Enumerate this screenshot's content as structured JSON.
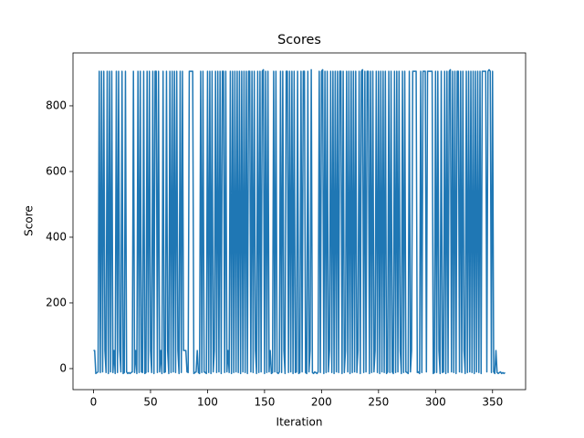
{
  "chart_data": {
    "type": "line",
    "title": "Scores",
    "xlabel": "Iteration",
    "ylabel": "Score",
    "xlim": [
      -18,
      379
    ],
    "ylim": [
      -64,
      961
    ],
    "xticks": [
      0,
      50,
      100,
      150,
      200,
      250,
      300,
      350
    ],
    "yticks": [
      0,
      200,
      400,
      600,
      800
    ],
    "x": [
      0,
      1,
      2,
      3,
      4,
      5,
      6,
      7,
      8,
      9,
      10,
      11,
      12,
      13,
      14,
      15,
      16,
      17,
      18,
      19,
      20,
      21,
      22,
      23,
      24,
      25,
      26,
      27,
      28,
      29,
      30,
      31,
      32,
      33,
      34,
      35,
      36,
      37,
      38,
      39,
      40,
      41,
      42,
      43,
      44,
      45,
      46,
      47,
      48,
      49,
      50,
      51,
      52,
      53,
      54,
      55,
      56,
      57,
      58,
      59,
      60,
      61,
      62,
      63,
      64,
      65,
      66,
      67,
      68,
      69,
      70,
      71,
      72,
      73,
      74,
      75,
      76,
      77,
      78,
      79,
      80,
      81,
      82,
      83,
      84,
      85,
      86,
      87,
      88,
      89,
      90,
      91,
      92,
      93,
      94,
      95,
      96,
      97,
      98,
      99,
      100,
      101,
      102,
      103,
      104,
      105,
      106,
      107,
      108,
      109,
      110,
      111,
      112,
      113,
      114,
      115,
      116,
      117,
      118,
      119,
      120,
      121,
      122,
      123,
      124,
      125,
      126,
      127,
      128,
      129,
      130,
      131,
      132,
      133,
      134,
      135,
      136,
      137,
      138,
      139,
      140,
      141,
      142,
      143,
      144,
      145,
      146,
      147,
      148,
      149,
      150,
      151,
      152,
      153,
      154,
      155,
      156,
      157,
      158,
      159,
      160,
      161,
      162,
      163,
      164,
      165,
      166,
      167,
      168,
      169,
      170,
      171,
      172,
      173,
      174,
      175,
      176,
      177,
      178,
      179,
      180,
      181,
      182,
      183,
      184,
      185,
      186,
      187,
      188,
      189,
      190,
      191,
      192,
      193,
      194,
      195,
      196,
      197,
      198,
      199,
      200,
      201,
      202,
      203,
      204,
      205,
      206,
      207,
      208,
      209,
      210,
      211,
      212,
      213,
      214,
      215,
      216,
      217,
      218,
      219,
      220,
      221,
      222,
      223,
      224,
      225,
      226,
      227,
      228,
      229,
      230,
      231,
      232,
      233,
      234,
      235,
      236,
      237,
      238,
      239,
      240,
      241,
      242,
      243,
      244,
      245,
      246,
      247,
      248,
      249,
      250,
      251,
      252,
      253,
      254,
      255,
      256,
      257,
      258,
      259,
      260,
      261,
      262,
      263,
      264,
      265,
      266,
      267,
      268,
      269,
      270,
      271,
      272,
      273,
      274,
      275,
      276,
      277,
      278,
      279,
      280,
      281,
      282,
      283,
      284,
      285,
      286,
      287,
      288,
      289,
      290,
      291,
      292,
      293,
      294,
      295,
      296,
      297,
      298,
      299,
      300,
      301,
      302,
      303,
      304,
      305,
      306,
      307,
      308,
      309,
      310,
      311,
      312,
      313,
      314,
      315,
      316,
      317,
      318,
      319,
      320,
      321,
      322,
      323,
      324,
      325,
      326,
      327,
      328,
      329,
      330,
      331,
      332,
      333,
      334,
      335,
      336,
      337,
      338,
      339,
      340,
      341,
      342,
      343,
      344,
      345,
      346,
      347,
      348,
      349,
      350,
      351,
      352,
      353,
      354,
      355,
      356,
      357,
      358,
      359,
      360,
      361
    ],
    "series": [
      {
        "color": "#1f77b4",
        "values": [
          55,
          55,
          -15,
          -12,
          -10,
          905,
          -12,
          905,
          -10,
          905,
          55,
          -12,
          905,
          -15,
          905,
          -10,
          905,
          -12,
          55,
          -15,
          905,
          -12,
          905,
          55,
          -10,
          905,
          -15,
          -12,
          905,
          -10,
          -15,
          -12,
          -15,
          -12,
          -10,
          905,
          -12,
          55,
          -15,
          905,
          -12,
          905,
          -10,
          -12,
          905,
          -15,
          -12,
          905,
          -10,
          905,
          55,
          -12,
          905,
          -15,
          905,
          905,
          -12,
          905,
          -10,
          55,
          -15,
          905,
          -12,
          -10,
          905,
          55,
          -15,
          905,
          -12,
          905,
          -10,
          905,
          -12,
          905,
          55,
          -15,
          905,
          -12,
          905,
          55,
          55,
          55,
          -10,
          -12,
          905,
          905,
          905,
          905,
          -15,
          -12,
          -10,
          55,
          -12,
          -15,
          905,
          -12,
          905,
          -10,
          -12,
          -15,
          905,
          -12,
          905,
          -15,
          905,
          -10,
          55,
          905,
          -12,
          905,
          -10,
          905,
          -15,
          905,
          905,
          -12,
          905,
          -10,
          55,
          -12,
          905,
          -15,
          905,
          -12,
          905,
          -10,
          905,
          -12,
          905,
          -15,
          905,
          -10,
          905,
          -12,
          905,
          -15,
          905,
          905,
          -10,
          905,
          -12,
          905,
          55,
          -15,
          905,
          -12,
          905,
          -10,
          905,
          910,
          -15,
          905,
          -12,
          905,
          -10,
          55,
          -15,
          -12,
          905,
          -10,
          905,
          -12,
          -15,
          -10,
          905,
          -12,
          905,
          55,
          -15,
          905,
          905,
          -12,
          905,
          -10,
          905,
          -15,
          905,
          -12,
          -10,
          905,
          -15,
          -12,
          905,
          -10,
          905,
          905,
          -12,
          -15,
          905,
          -10,
          55,
          910,
          -12,
          -15,
          -10,
          -12,
          -15,
          -10,
          905,
          -12,
          905,
          910,
          -15,
          905,
          -12,
          905,
          -10,
          55,
          905,
          -12,
          905,
          -15,
          905,
          -10,
          905,
          -12,
          905,
          905,
          -15,
          905,
          -12,
          55,
          905,
          -10,
          905,
          -15,
          905,
          -12,
          905,
          -10,
          905,
          -12,
          55,
          905,
          -15,
          905,
          910,
          -12,
          905,
          -10,
          905,
          905,
          -15,
          905,
          -12,
          905,
          -10,
          55,
          905,
          -12,
          905,
          -15,
          905,
          -10,
          905,
          -12,
          905,
          -15,
          -10,
          905,
          -12,
          905,
          -10,
          -15,
          905,
          -12,
          905,
          -10,
          905,
          55,
          -15,
          905,
          -12,
          905,
          -10,
          -12,
          -15,
          905,
          -10,
          55,
          905,
          905,
          905,
          905,
          -12,
          -10,
          -15,
          905,
          -12,
          905,
          905,
          905,
          -10,
          905,
          905,
          905,
          905,
          905,
          -15,
          -12,
          905,
          -12,
          905,
          55,
          -15,
          905,
          -12,
          -10,
          905,
          -15,
          905,
          -12,
          905,
          910,
          -10,
          905,
          -12,
          905,
          -15,
          905,
          905,
          -10,
          905,
          -12,
          905,
          55,
          -15,
          905,
          -12,
          905,
          -10,
          905,
          -12,
          905,
          -15,
          905,
          -10,
          905,
          -12,
          905,
          -15,
          905,
          905,
          905,
          905,
          -10,
          905,
          910,
          905,
          -12,
          905,
          -10,
          -15,
          55,
          -12,
          -15,
          -12,
          -10,
          -15,
          -12,
          -15,
          -12
        ]
      }
    ]
  }
}
